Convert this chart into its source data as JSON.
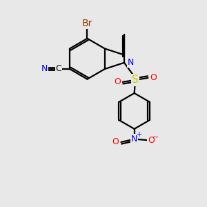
{
  "bg_color": "#e8e8e8",
  "line_color": "#000000",
  "line_width": 1.6,
  "atom_colors": {
    "Br": "#8B4000",
    "N": "#0000FF",
    "O": "#FF0000",
    "S": "#CCCC00",
    "C_label": "#000000"
  },
  "font_size": 9,
  "figsize": [
    3.0,
    3.0
  ],
  "dpi": 100
}
